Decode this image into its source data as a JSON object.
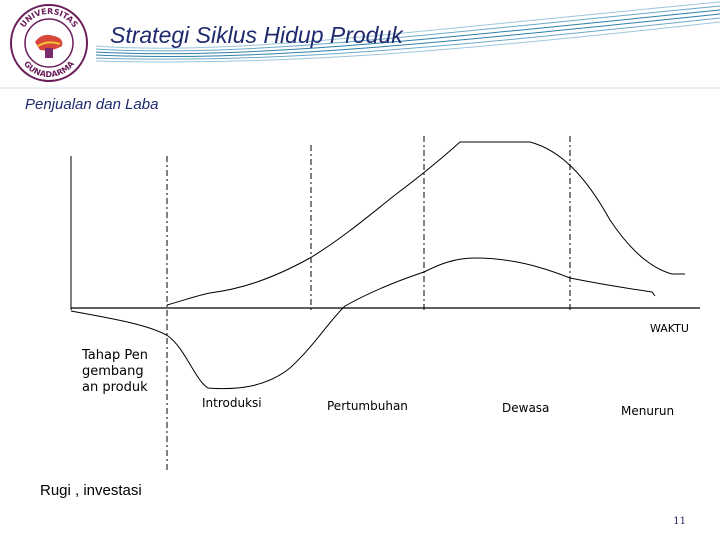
{
  "slide": {
    "title": "Strategi Siklus Hidup Produk",
    "page_number": "11"
  },
  "logo": {
    "text_top": "UNIVERSITAS",
    "text_bottom": "GUNADARMA"
  },
  "diagram": {
    "y_label_top": "Penjualan dan Laba",
    "y_label_bottom": "Rugi , investasi",
    "x_label": "WAKTU",
    "stages": [
      "Tahap Pengembangan produk",
      "Introduksi",
      "Pertumbuhan",
      "Dewasa",
      "Menurun"
    ],
    "curves": [
      "sales",
      "profit"
    ]
  },
  "colors": {
    "title": "#1f2a6e",
    "header_wave": "#2e7fa8",
    "logo_ring": "#6b1e5a",
    "curve": "#000000"
  }
}
